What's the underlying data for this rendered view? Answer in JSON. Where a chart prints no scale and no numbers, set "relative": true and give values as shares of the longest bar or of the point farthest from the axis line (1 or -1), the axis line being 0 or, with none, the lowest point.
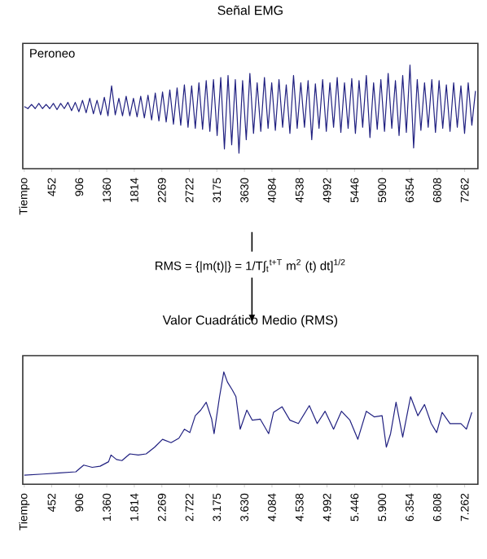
{
  "chart_data": [
    {
      "type": "line",
      "title": "Señal EMG",
      "relative": true,
      "xlim": [
        -25,
        7480
      ],
      "xticks": [
        {
          "value": 0,
          "label": "Tiempo"
        },
        452,
        906,
        1360,
        1814,
        2269,
        2722,
        3175,
        3630,
        4084,
        4538,
        4992,
        5446,
        5900,
        6354,
        6808,
        7262
      ],
      "x": [
        0,
        60,
        120,
        180,
        240,
        300,
        360,
        420,
        480,
        540,
        600,
        660,
        720,
        780,
        840,
        900,
        960,
        1020,
        1080,
        1140,
        1200,
        1260,
        1320,
        1380,
        1440,
        1500,
        1560,
        1620,
        1680,
        1740,
        1800,
        1860,
        1920,
        1980,
        2040,
        2100,
        2160,
        2220,
        2280,
        2340,
        2400,
        2460,
        2520,
        2580,
        2640,
        2700,
        2760,
        2820,
        2880,
        2940,
        3000,
        3060,
        3120,
        3180,
        3240,
        3300,
        3360,
        3420,
        3480,
        3540,
        3600,
        3660,
        3720,
        3780,
        3840,
        3900,
        3960,
        4020,
        4080,
        4140,
        4200,
        4260,
        4320,
        4380,
        4440,
        4500,
        4560,
        4620,
        4680,
        4740,
        4800,
        4860,
        4920,
        4980,
        5040,
        5100,
        5160,
        5220,
        5280,
        5340,
        5400,
        5460,
        5520,
        5580,
        5640,
        5700,
        5760,
        5820,
        5880,
        5940,
        6000,
        6060,
        6120,
        6180,
        6240,
        6300,
        6360,
        6420,
        6480,
        6540,
        6600,
        6660,
        6720,
        6780,
        6840,
        6900,
        6960,
        7020,
        7080,
        7140,
        7200,
        7260,
        7320,
        7380,
        7440
      ],
      "series": [
        {
          "name": "Peroneo",
          "color": "#202080",
          "values": [
            0.6,
            0.58,
            0.62,
            0.58,
            0.63,
            0.58,
            0.62,
            0.58,
            0.63,
            0.57,
            0.63,
            0.58,
            0.64,
            0.56,
            0.64,
            0.55,
            0.66,
            0.54,
            0.68,
            0.53,
            0.66,
            0.52,
            0.69,
            0.51,
            0.8,
            0.52,
            0.68,
            0.51,
            0.7,
            0.51,
            0.68,
            0.5,
            0.7,
            0.49,
            0.71,
            0.47,
            0.73,
            0.46,
            0.74,
            0.45,
            0.76,
            0.43,
            0.78,
            0.42,
            0.81,
            0.4,
            0.8,
            0.39,
            0.83,
            0.38,
            0.85,
            0.36,
            0.86,
            0.32,
            0.88,
            0.19,
            0.9,
            0.23,
            0.86,
            0.15,
            0.85,
            0.28,
            0.92,
            0.34,
            0.83,
            0.36,
            0.88,
            0.39,
            0.83,
            0.37,
            0.86,
            0.4,
            0.81,
            0.34,
            0.9,
            0.39,
            0.83,
            0.4,
            0.85,
            0.28,
            0.82,
            0.39,
            0.86,
            0.36,
            0.83,
            0.4,
            0.88,
            0.35,
            0.83,
            0.39,
            0.87,
            0.34,
            0.85,
            0.4,
            0.9,
            0.3,
            0.83,
            0.38,
            0.86,
            0.36,
            0.92,
            0.39,
            0.85,
            0.32,
            0.9,
            0.35,
            1.0,
            0.2,
            0.86,
            0.37,
            0.83,
            0.4,
            0.86,
            0.35,
            0.85,
            0.39,
            0.81,
            0.36,
            0.83,
            0.4,
            0.8,
            0.34,
            0.83,
            0.42,
            0.75
          ]
        }
      ]
    },
    {
      "type": "line",
      "title": "Valor Cuadrático Medio (RMS)",
      "relative": true,
      "xlim": [
        -25,
        7480
      ],
      "annotations": [
        "RMS = {|m(t)|} = 1/T∫$_{t}$$^{t+T}$ m$^{2}$ (t) dt]$^{1/2}$"
      ],
      "xticks": [
        {
          "value": 0,
          "label": "Tiempo"
        },
        452,
        906,
        {
          "value": 1360,
          "label": "1.360"
        },
        {
          "value": 1814,
          "label": "1.814"
        },
        {
          "value": 2269,
          "label": "2.269"
        },
        {
          "value": 2722,
          "label": "2.722"
        },
        {
          "value": 3175,
          "label": "3.175"
        },
        {
          "value": 3630,
          "label": "3.630"
        },
        {
          "value": 4084,
          "label": "4.084"
        },
        {
          "value": 4538,
          "label": "4.538"
        },
        {
          "value": 4992,
          "label": "4.992"
        },
        {
          "value": 5446,
          "label": "5.446"
        },
        {
          "value": 5900,
          "label": "5.900"
        },
        {
          "value": 6354,
          "label": "6.354"
        },
        {
          "value": 6808,
          "label": "6.808"
        },
        {
          "value": 7262,
          "label": "7.262"
        }
      ],
      "x": [
        0,
        310,
        580,
        850,
        980,
        1120,
        1250,
        1390,
        1430,
        1520,
        1610,
        1740,
        1880,
        2010,
        2150,
        2280,
        2420,
        2550,
        2640,
        2730,
        2820,
        2910,
        3000,
        3090,
        3130,
        3220,
        3290,
        3350,
        3430,
        3490,
        3560,
        3670,
        3760,
        3890,
        4030,
        4110,
        4250,
        4380,
        4520,
        4700,
        4830,
        4960,
        5100,
        5230,
        5370,
        5500,
        5640,
        5770,
        5900,
        5970,
        6040,
        6130,
        6240,
        6370,
        6490,
        6600,
        6710,
        6800,
        6890,
        7020,
        7200,
        7290,
        7380
      ],
      "series": [
        {
          "color": "#202080",
          "values": [
            0.08,
            0.09,
            0.1,
            0.11,
            0.17,
            0.15,
            0.16,
            0.2,
            0.26,
            0.22,
            0.21,
            0.27,
            0.26,
            0.27,
            0.33,
            0.4,
            0.37,
            0.41,
            0.49,
            0.46,
            0.61,
            0.66,
            0.73,
            0.58,
            0.45,
            0.78,
            1.0,
            0.91,
            0.84,
            0.78,
            0.49,
            0.66,
            0.57,
            0.58,
            0.45,
            0.64,
            0.69,
            0.57,
            0.54,
            0.7,
            0.54,
            0.65,
            0.49,
            0.65,
            0.57,
            0.4,
            0.65,
            0.6,
            0.61,
            0.33,
            0.45,
            0.73,
            0.42,
            0.78,
            0.61,
            0.71,
            0.54,
            0.46,
            0.64,
            0.54,
            0.54,
            0.49,
            0.64
          ]
        }
      ]
    }
  ]
}
